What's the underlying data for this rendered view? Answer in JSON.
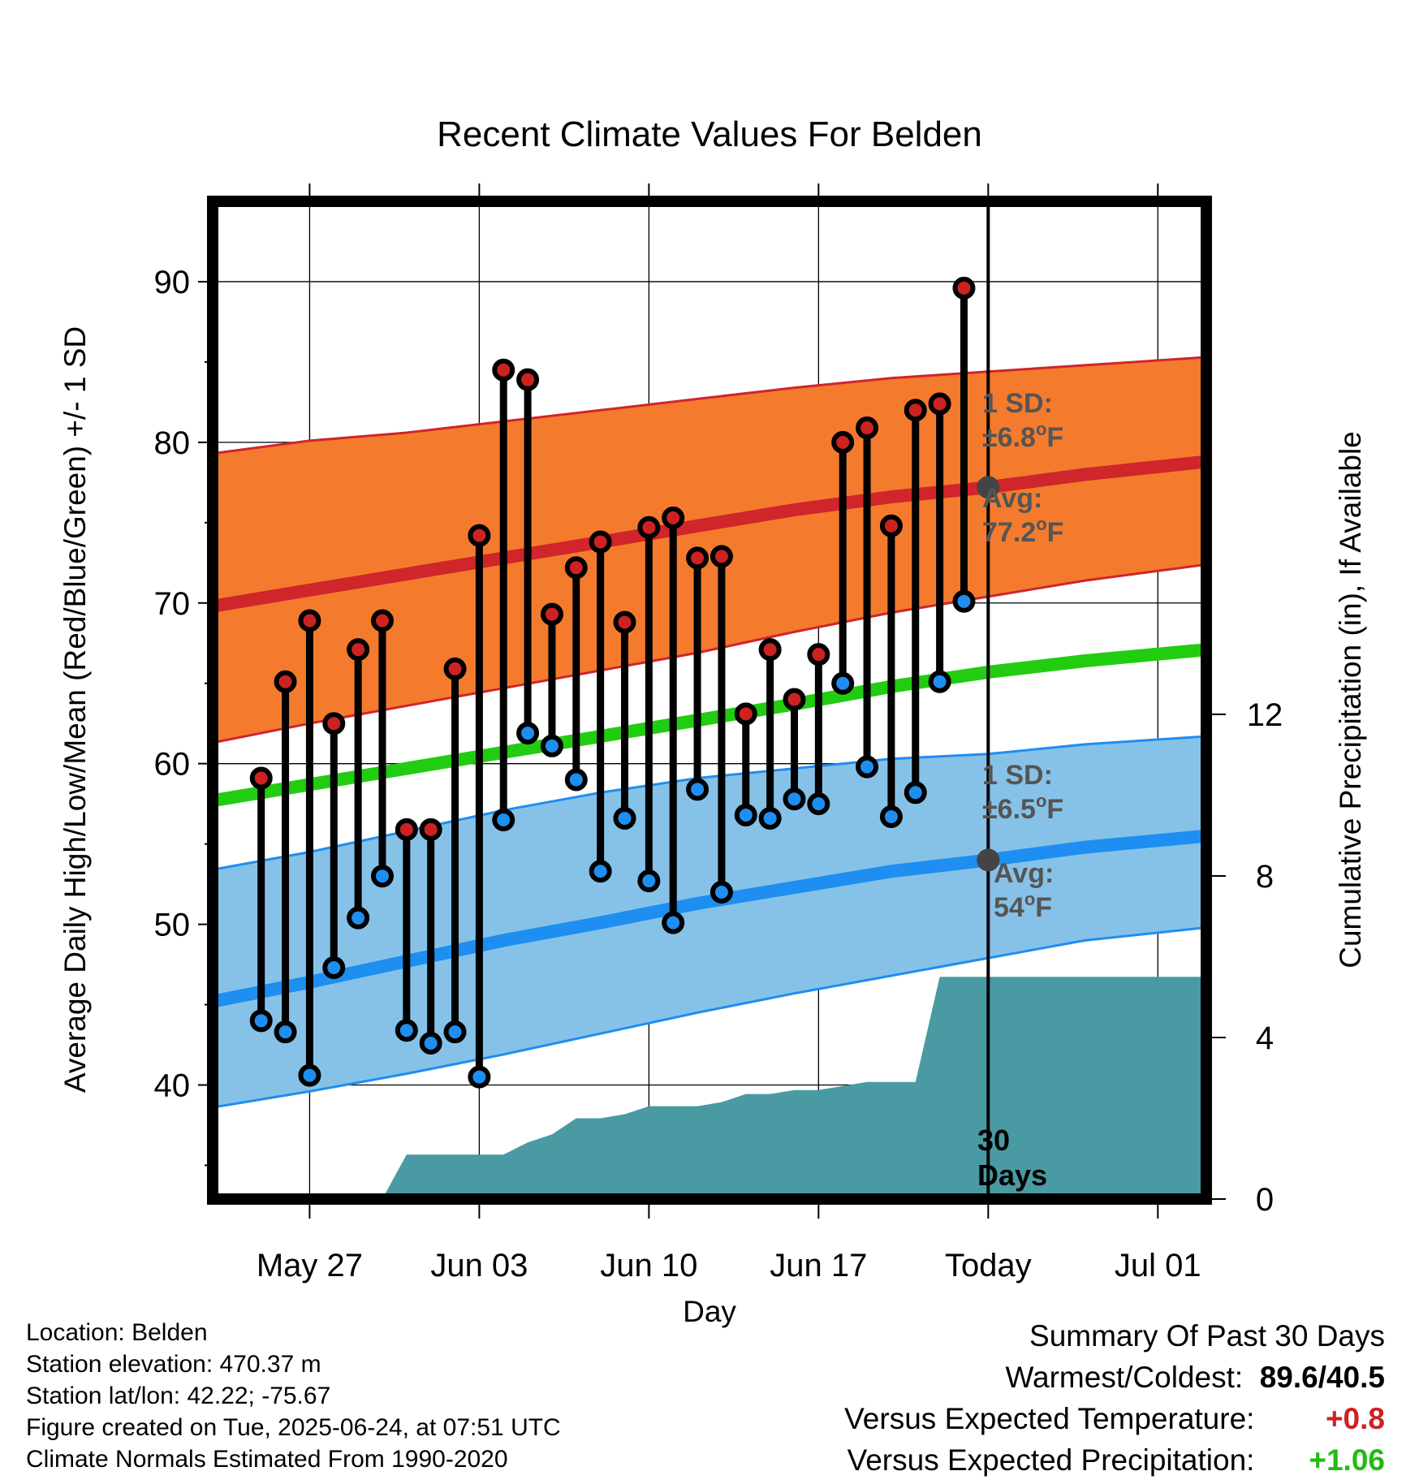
{
  "chart_data": {
    "type": "line",
    "title": "Recent Climate Values For Belden",
    "xlabel": "Day",
    "ylabel": "Average Daily High/Low/Mean (Red/Blue/Green) +/- 1 SD",
    "y2label": "Cumulative Precipitation (in), If Available",
    "x_tick_labels": [
      "May 27",
      "Jun 03",
      "Jun 10",
      "Jun 17",
      "Today",
      "Jul 01"
    ],
    "y_ticks": [
      40,
      50,
      60,
      70,
      80,
      90
    ],
    "y2_ticks": [
      0,
      4,
      8,
      12
    ],
    "ylim": [
      32.9,
      95
    ],
    "y2lim": [
      0,
      24.7
    ],
    "xlim": [
      "2025-05-23",
      "2025-07-03"
    ],
    "days": [
      "2025-05-25",
      "2025-05-26",
      "2025-05-27",
      "2025-05-28",
      "2025-05-29",
      "2025-05-30",
      "2025-05-31",
      "2025-06-01",
      "2025-06-02",
      "2025-06-03",
      "2025-06-04",
      "2025-06-05",
      "2025-06-06",
      "2025-06-07",
      "2025-06-08",
      "2025-06-09",
      "2025-06-10",
      "2025-06-11",
      "2025-06-12",
      "2025-06-13",
      "2025-06-14",
      "2025-06-15",
      "2025-06-16",
      "2025-06-17",
      "2025-06-18",
      "2025-06-19",
      "2025-06-20",
      "2025-06-21",
      "2025-06-22",
      "2025-06-23"
    ],
    "observed_high": [
      59.1,
      65.1,
      68.9,
      62.5,
      67.1,
      68.9,
      55.9,
      55.9,
      65.9,
      74.2,
      84.5,
      83.9,
      69.3,
      72.2,
      73.8,
      68.8,
      74.7,
      75.3,
      72.8,
      72.9,
      63.1,
      67.1,
      64.0,
      66.8,
      80.0,
      80.9,
      74.8,
      82.0,
      82.4,
      89.6
    ],
    "observed_low": [
      44.0,
      43.3,
      40.6,
      47.3,
      50.4,
      53.0,
      43.4,
      42.6,
      43.3,
      40.5,
      56.5,
      61.9,
      61.1,
      59.0,
      53.3,
      56.6,
      52.7,
      50.1,
      58.4,
      52.0,
      56.8,
      56.6,
      57.8,
      57.5,
      65.0,
      59.8,
      56.7,
      58.2,
      65.1,
      70.1
    ],
    "normal_curve_days": [
      "2025-05-23",
      "2025-05-27",
      "2025-05-31",
      "2025-06-04",
      "2025-06-08",
      "2025-06-12",
      "2025-06-16",
      "2025-06-20",
      "2025-06-24",
      "2025-06-28",
      "2025-07-03"
    ],
    "normal_high": [
      69.8,
      70.8,
      71.8,
      72.8,
      73.8,
      74.8,
      75.8,
      76.6,
      77.2,
      78.0,
      78.8
    ],
    "high_sd_upper": [
      79.3,
      80.1,
      80.6,
      81.3,
      82.0,
      82.7,
      83.4,
      84.0,
      84.4,
      84.8,
      85.3
    ],
    "high_sd_lower": [
      61.3,
      62.5,
      63.6,
      64.7,
      65.8,
      66.9,
      68.2,
      69.4,
      70.4,
      71.4,
      72.4
    ],
    "normal_mean": [
      57.7,
      58.7,
      59.7,
      60.7,
      61.7,
      62.7,
      63.7,
      64.8,
      65.7,
      66.4,
      67.1
    ],
    "normal_low": [
      45.2,
      46.4,
      47.7,
      49.0,
      50.1,
      51.3,
      52.3,
      53.3,
      54.0,
      54.8,
      55.5
    ],
    "low_sd_upper": [
      53.4,
      54.5,
      55.8,
      57.1,
      58.2,
      59.1,
      59.7,
      60.3,
      60.6,
      61.2,
      61.7
    ],
    "low_sd_lower": [
      38.6,
      39.6,
      40.7,
      41.9,
      43.2,
      44.5,
      45.7,
      46.8,
      47.9,
      49.0,
      49.8
    ],
    "precip_days": [
      "2025-05-23",
      "2025-05-30",
      "2025-05-31",
      "2025-06-01",
      "2025-06-02",
      "2025-06-03",
      "2025-06-04",
      "2025-06-05",
      "2025-06-06",
      "2025-06-07",
      "2025-06-08",
      "2025-06-09",
      "2025-06-10",
      "2025-06-11",
      "2025-06-12",
      "2025-06-13",
      "2025-06-14",
      "2025-06-15",
      "2025-06-16",
      "2025-06-17",
      "2025-06-18",
      "2025-06-19",
      "2025-06-20",
      "2025-06-21",
      "2025-06-22",
      "2025-06-23",
      "2025-07-03"
    ],
    "precip_cumulative": [
      0.0,
      0.0,
      1.1,
      1.1,
      1.1,
      1.1,
      1.1,
      1.4,
      1.6,
      2.0,
      2.0,
      2.1,
      2.3,
      2.3,
      2.3,
      2.4,
      2.6,
      2.6,
      2.7,
      2.7,
      2.8,
      2.9,
      2.9,
      2.9,
      5.5,
      5.5,
      5.5
    ],
    "today": "2025-06-24",
    "annotations": {
      "high_sd_line1": "1 SD:",
      "high_sd_line2": "±6.8°F",
      "high_avg_line1": "Avg:",
      "high_avg_line2": "77.2°F",
      "high_avg_value": 77.2,
      "low_sd_line1": "1 SD:",
      "low_sd_line2": "±6.5°F",
      "low_avg_line1": "Avg:",
      "low_avg_line2": "54°F",
      "low_avg_value": 54.0,
      "days_line1": "30",
      "days_line2": "Days"
    },
    "colors": {
      "high_band": "#f47b2e",
      "high_line": "#d0252a",
      "low_band": "#86c2e8",
      "low_line": "#1e8ef0",
      "mean_line": "#22cc11",
      "precip": "#4a9aa3",
      "high_dot": "#cc2222",
      "low_dot": "#1e8ef0",
      "avg_marker": "#444444"
    }
  },
  "footer": {
    "location": "Location: Belden",
    "elevation": "Station elevation: 470.37 m",
    "latlon": "Station lat/lon: 42.22; -75.67",
    "created": "Figure created on Tue, 2025-06-24, at 07:51 UTC",
    "normals": "Climate Normals Estimated From 1990-2020"
  },
  "summary": {
    "title": "Summary Of Past 30 Days",
    "warmest_label": "Warmest/Coldest:",
    "warmest_value": "89.6/40.5",
    "temp_label": "Versus Expected Temperature:",
    "temp_value": "+0.8",
    "temp_color": "#cc2222",
    "precip_label": "Versus Expected Precipitation:",
    "precip_value": "+1.06",
    "precip_color": "#22bb11"
  }
}
